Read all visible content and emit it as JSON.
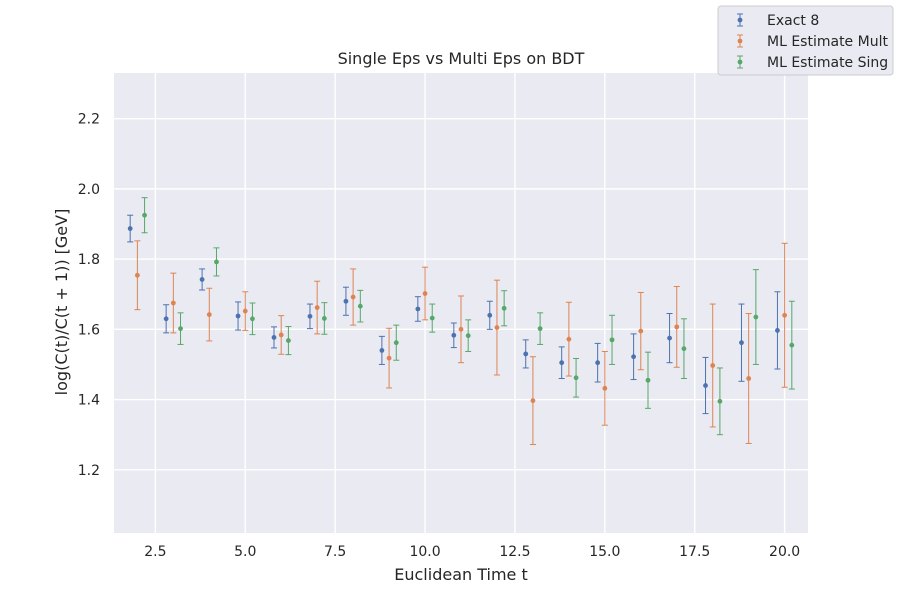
{
  "chart_data": {
    "type": "scatter",
    "title": "Single Eps vs Multi Eps on BDT",
    "xlabel": "Euclidean Time t",
    "ylabel": "log(C(t)/C(t + 1)) [GeV]",
    "xlim": [
      1.35,
      20.65
    ],
    "ylim": [
      1.02,
      2.33
    ],
    "xticks": [
      "2.5",
      "5.0",
      "7.5",
      "10.0",
      "12.5",
      "15.0",
      "17.5",
      "20.0"
    ],
    "yticks": [
      "1.2",
      "1.4",
      "1.6",
      "1.8",
      "2.0",
      "2.2"
    ],
    "grid": true,
    "legend_position": "top-right",
    "x": [
      2,
      3,
      4,
      5,
      6,
      7,
      8,
      9,
      10,
      11,
      12,
      13,
      14,
      15,
      16,
      17,
      18,
      19,
      20
    ],
    "series": [
      {
        "name": "Exact 8",
        "color": "#4c72b0",
        "offset": -0.2,
        "values": [
          1.887,
          1.63,
          1.742,
          1.638,
          1.577,
          1.637,
          1.68,
          1.54,
          1.658,
          1.583,
          1.64,
          1.53,
          1.505,
          1.505,
          1.522,
          1.575,
          1.44,
          1.562,
          1.597
        ],
        "errors": [
          0.038,
          0.04,
          0.03,
          0.04,
          0.03,
          0.035,
          0.04,
          0.04,
          0.035,
          0.035,
          0.04,
          0.04,
          0.045,
          0.055,
          0.065,
          0.07,
          0.08,
          0.11,
          0.11
        ]
      },
      {
        "name": "ML Estimate Mult",
        "color": "#dd8452",
        "offset": 0.0,
        "values": [
          1.754,
          1.675,
          1.642,
          1.652,
          1.584,
          1.662,
          1.692,
          1.518,
          1.702,
          1.6,
          1.605,
          1.397,
          1.572,
          1.432,
          1.595,
          1.607,
          1.497,
          1.46,
          1.64
        ],
        "errors": [
          0.098,
          0.085,
          0.075,
          0.055,
          0.055,
          0.075,
          0.08,
          0.085,
          0.075,
          0.095,
          0.135,
          0.125,
          0.105,
          0.105,
          0.11,
          0.115,
          0.175,
          0.185,
          0.205
        ]
      },
      {
        "name": "ML Estimate Sing",
        "color": "#55a868",
        "offset": 0.2,
        "values": [
          1.925,
          1.602,
          1.792,
          1.63,
          1.568,
          1.631,
          1.666,
          1.562,
          1.632,
          1.582,
          1.66,
          1.602,
          1.462,
          1.57,
          1.455,
          1.545,
          1.395,
          1.635,
          1.555
        ],
        "errors": [
          0.05,
          0.045,
          0.04,
          0.045,
          0.04,
          0.045,
          0.045,
          0.05,
          0.04,
          0.045,
          0.05,
          0.045,
          0.055,
          0.07,
          0.08,
          0.085,
          0.095,
          0.135,
          0.125
        ]
      }
    ]
  }
}
